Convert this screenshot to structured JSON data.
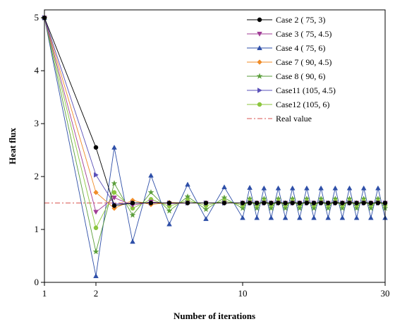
{
  "chart_data": {
    "type": "line",
    "title": "",
    "xlabel": "Number of iterations",
    "ylabel": "Heat flux",
    "xlim": [
      1,
      30
    ],
    "ylim": [
      0,
      5.15
    ],
    "x_ticks": [
      "1",
      "2",
      "10",
      "30"
    ],
    "y_ticks": [
      "0",
      "1",
      "2",
      "3",
      "4",
      "5"
    ],
    "x": [
      1,
      2,
      3,
      4,
      5,
      6,
      7,
      8,
      9,
      10,
      11,
      12,
      13,
      14,
      15,
      16,
      17,
      18,
      19,
      20,
      21,
      22,
      23,
      24,
      25,
      26,
      27,
      28,
      29,
      30
    ],
    "legend_position": "top-right",
    "series": [
      {
        "name": "Case 2 ( 75,    3)",
        "color": "#000000",
        "marker": "circle",
        "values": [
          5,
          2.55,
          1.45,
          1.5,
          1.5,
          1.5,
          1.5,
          1.5,
          1.5,
          1.5,
          1.5,
          1.5,
          1.5,
          1.5,
          1.5,
          1.5,
          1.5,
          1.5,
          1.5,
          1.5,
          1.5,
          1.5,
          1.5,
          1.5,
          1.5,
          1.5,
          1.5,
          1.5,
          1.5,
          1.5
        ]
      },
      {
        "name": "Case 3 ( 75, 4.5)",
        "color": "#a03c96",
        "marker": "triangle-down",
        "values": [
          5,
          1.33,
          1.6,
          1.46,
          1.52,
          1.49,
          1.5,
          1.5,
          1.5,
          1.5,
          1.5,
          1.5,
          1.5,
          1.5,
          1.5,
          1.5,
          1.5,
          1.5,
          1.5,
          1.5,
          1.5,
          1.5,
          1.5,
          1.5,
          1.5,
          1.5,
          1.5,
          1.5,
          1.5,
          1.5
        ]
      },
      {
        "name": "Case 4 ( 75,    6)",
        "color": "#2e4fa8",
        "marker": "triangle-up",
        "values": [
          5,
          0.12,
          2.55,
          0.77,
          2.02,
          1.1,
          1.85,
          1.2,
          1.8,
          1.22,
          1.79,
          1.22,
          1.78,
          1.22,
          1.78,
          1.22,
          1.78,
          1.22,
          1.78,
          1.22,
          1.78,
          1.22,
          1.78,
          1.22,
          1.78,
          1.22,
          1.78,
          1.22,
          1.78,
          1.22
        ]
      },
      {
        "name": "Case 7 ( 90, 4.5)",
        "color": "#f08c28",
        "marker": "diamond",
        "values": [
          5,
          1.7,
          1.4,
          1.55,
          1.47,
          1.51,
          1.5,
          1.5,
          1.5,
          1.5,
          1.5,
          1.5,
          1.5,
          1.5,
          1.5,
          1.5,
          1.5,
          1.5,
          1.5,
          1.5,
          1.5,
          1.5,
          1.5,
          1.5,
          1.5,
          1.5,
          1.5,
          1.5,
          1.5,
          1.5
        ]
      },
      {
        "name": "Case 8 ( 90,    6)",
        "color": "#5a9e3a",
        "marker": "star",
        "values": [
          5,
          0.58,
          1.87,
          1.27,
          1.7,
          1.35,
          1.62,
          1.38,
          1.6,
          1.4,
          1.58,
          1.4,
          1.58,
          1.4,
          1.58,
          1.4,
          1.58,
          1.4,
          1.58,
          1.4,
          1.58,
          1.4,
          1.58,
          1.4,
          1.58,
          1.4,
          1.58,
          1.4,
          1.58,
          1.4
        ]
      },
      {
        "name": "Case11 (105, 4.5)",
        "color": "#5a50b8",
        "marker": "triangle-right",
        "values": [
          5,
          2.03,
          1.48,
          1.5,
          1.5,
          1.5,
          1.5,
          1.5,
          1.5,
          1.5,
          1.5,
          1.5,
          1.5,
          1.5,
          1.5,
          1.5,
          1.5,
          1.5,
          1.5,
          1.5,
          1.5,
          1.5,
          1.5,
          1.5,
          1.5,
          1.5,
          1.5,
          1.5,
          1.5,
          1.5
        ]
      },
      {
        "name": "Case12 (105,    6)",
        "color": "#8cc63e",
        "marker": "circle",
        "values": [
          5,
          1.03,
          1.7,
          1.4,
          1.57,
          1.44,
          1.55,
          1.45,
          1.54,
          1.46,
          1.54,
          1.46,
          1.54,
          1.46,
          1.54,
          1.46,
          1.54,
          1.46,
          1.54,
          1.46,
          1.54,
          1.46,
          1.54,
          1.46,
          1.54,
          1.46,
          1.54,
          1.46,
          1.54,
          1.46
        ]
      }
    ],
    "reference_line": {
      "name": "Real value",
      "value": 1.5,
      "color": "#d9534f",
      "style": "dash-dot"
    }
  }
}
